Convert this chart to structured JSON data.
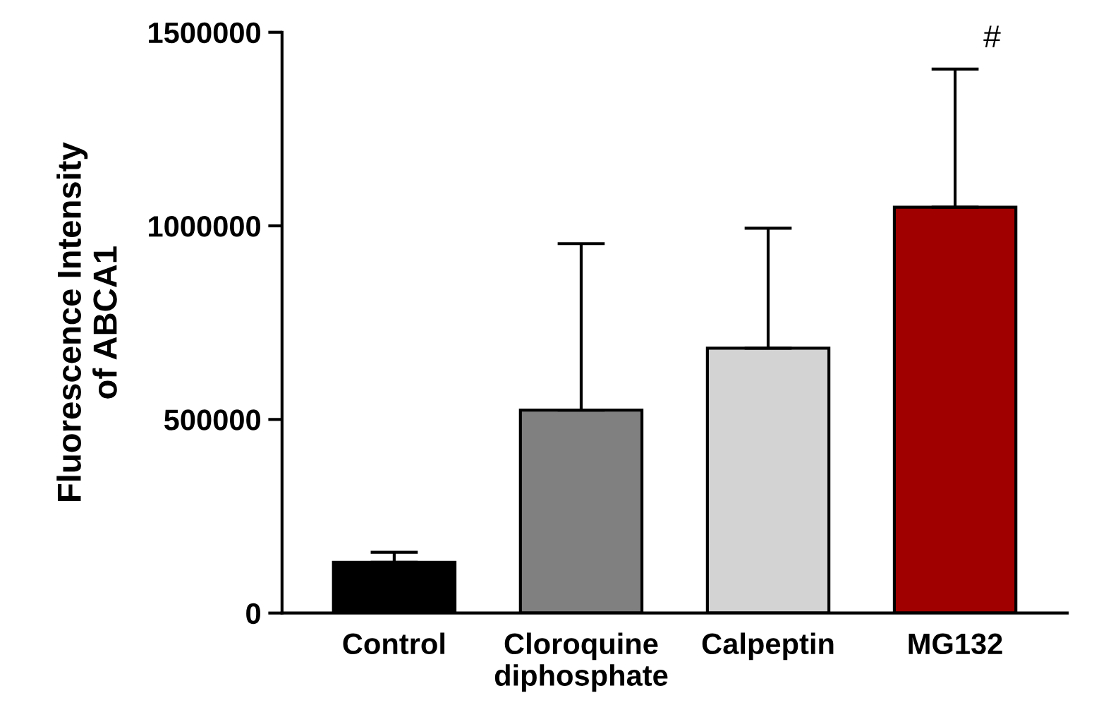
{
  "chart_data": {
    "type": "bar",
    "categories": [
      "Control",
      "Cloroquine\ndiphosphate",
      "Calpeptin",
      "MG132"
    ],
    "values": [
      131000,
      524000,
      684000,
      1048000
    ],
    "colors": [
      "#000000",
      "#808080",
      "#d3d3d3",
      "#a00000"
    ],
    "errors": [
      [
        131000,
        157000
      ],
      [
        524000,
        954000
      ],
      [
        684000,
        994000
      ],
      [
        1048000,
        1405000
      ]
    ],
    "ylabel": "Fluorescence Intensity\nof ABCA1",
    "ylim": [
      0,
      1500000
    ],
    "yticks": [
      0,
      500000,
      1000000,
      1500000
    ],
    "annotations": [
      "#"
    ],
    "grid": false,
    "legend": false
  }
}
